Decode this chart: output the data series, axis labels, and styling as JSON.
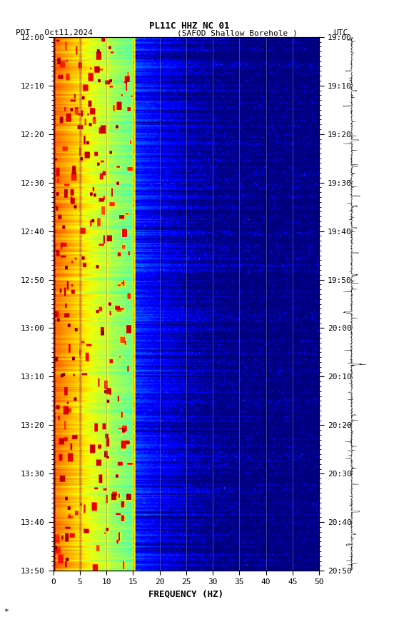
{
  "title_line1": "PL11C HHZ NC 01",
  "title_line2_left": "PDT   Oct11,2024",
  "title_line2_mid": "(SAFOD Shallow Borehole )",
  "title_line2_right": "UTC",
  "xlabel": "FREQUENCY (HZ)",
  "freq_min": 0,
  "freq_max": 50,
  "freq_ticks": [
    0,
    5,
    10,
    15,
    20,
    25,
    30,
    35,
    40,
    45,
    50
  ],
  "time_start_pdt": "12:00",
  "time_end_pdt": "13:50",
  "time_start_utc": "19:00",
  "time_end_utc": "20:50",
  "pdt_ticks": [
    "12:00",
    "12:10",
    "12:20",
    "12:30",
    "12:40",
    "12:50",
    "13:00",
    "13:10",
    "13:20",
    "13:30",
    "13:40",
    "13:50"
  ],
  "utc_ticks": [
    "19:00",
    "19:10",
    "19:20",
    "19:30",
    "19:40",
    "19:50",
    "20:00",
    "20:10",
    "20:20",
    "20:30",
    "20:40",
    "20:50"
  ],
  "background_color": "#ffffff",
  "vgrid_color": "#888888",
  "vgrid_freqs": [
    5,
    10,
    15,
    20,
    25,
    30,
    35,
    40,
    45
  ]
}
